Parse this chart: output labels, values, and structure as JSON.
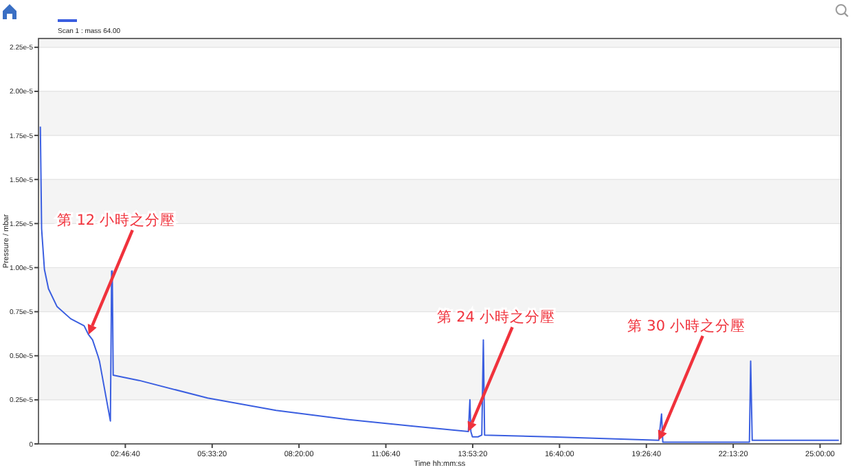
{
  "chart_data": {
    "type": "line",
    "xlabel": "Time hh:mm:ss",
    "ylabel": "Pressure / mbar",
    "legend": "top left",
    "grid": "y",
    "line_style": "solid",
    "xlim": [
      0,
      25.67
    ],
    "ylim": [
      0,
      2.3e-05
    ],
    "xticks": [
      {
        "value": 2.7778,
        "label": "02:46:40"
      },
      {
        "value": 5.5556,
        "label": "05:33:20"
      },
      {
        "value": 8.3333,
        "label": "08:20:00"
      },
      {
        "value": 11.1111,
        "label": "11:06:40"
      },
      {
        "value": 13.8889,
        "label": "13:53:20"
      },
      {
        "value": 16.6667,
        "label": "16:40:00"
      },
      {
        "value": 19.4444,
        "label": "19:26:40"
      },
      {
        "value": 22.2222,
        "label": "22:13:20"
      },
      {
        "value": 25,
        "label": "25:00:00"
      }
    ],
    "yticks": [
      0,
      {
        "value": 2.5e-06,
        "label": "0.25e-5"
      },
      {
        "value": 5e-06,
        "label": "0.50e-5"
      },
      {
        "value": 7.5e-06,
        "label": "0.75e-5"
      },
      {
        "value": 1e-05,
        "label": "1.00e-5"
      },
      {
        "value": 1.25e-05,
        "label": "1.25e-5"
      },
      {
        "value": 1.5e-05,
        "label": "1.50e-5"
      },
      {
        "value": 1.75e-05,
        "label": "1.75e-5"
      },
      {
        "value": 2e-05,
        "label": "2.00e-5"
      },
      {
        "value": 2.25e-05,
        "label": "2.25e-5"
      }
    ],
    "series": [
      {
        "name": "Scan 1 : mass 64.00",
        "color": "#3a5ee0",
        "x": [
          0.06,
          0.1,
          0.19,
          0.32,
          0.59,
          1.03,
          1.46,
          1.6,
          1.73,
          1.9,
          1.95,
          2.3,
          2.34,
          2.36,
          2.39,
          3.22,
          5.41,
          7.6,
          9.8,
          11.99,
          13.75,
          13.8,
          13.83,
          13.88,
          14.06,
          14.18,
          14.23,
          14.27,
          16.38,
          19.84,
          19.93,
          19.97,
          20.06,
          22.74,
          22.78,
          22.83,
          25.6
        ],
        "values": [
          1.8e-05,
          1.22e-05,
          9.9e-06,
          8.8e-06,
          7.8e-06,
          7.1e-06,
          6.7e-06,
          6.2e-06,
          5.9e-06,
          5e-06,
          4.7e-06,
          1.3e-06,
          9.8e-06,
          9.8e-06,
          3.9e-06,
          3.6e-06,
          2.6e-06,
          1.9e-06,
          1.4e-06,
          1e-06,
          7e-07,
          2.5e-06,
          7e-07,
          4e-07,
          4e-07,
          5e-07,
          5.9e-06,
          5e-07,
          4e-07,
          2e-07,
          1.7e-06,
          1e-07,
          1e-07,
          1e-07,
          4.7e-06,
          2e-07,
          2e-07
        ]
      }
    ],
    "annotations": [
      {
        "text": "第 12 小時之分壓",
        "x": 1.6,
        "y": 6.2e-06
      },
      {
        "text": "第 24 小時之分壓",
        "x": 13.75,
        "y": 7e-07
      },
      {
        "text": "第 30 小時之分壓",
        "x": 19.84,
        "y": 2e-07
      }
    ]
  }
}
